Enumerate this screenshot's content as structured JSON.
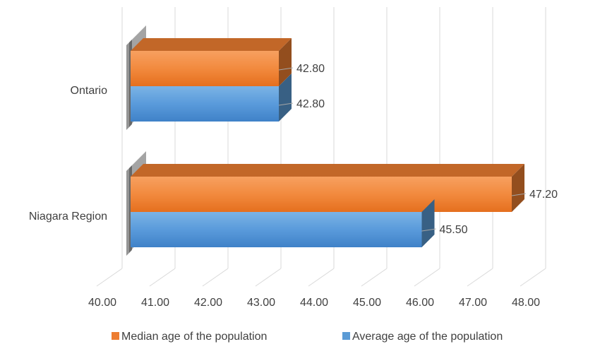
{
  "chart_data": {
    "type": "bar",
    "orientation": "horizontal",
    "style": "3d",
    "categories": [
      "Ontario",
      "Niagara Region"
    ],
    "series": [
      {
        "name": "Median age of the population",
        "color": "#ED7D31",
        "values": [
          42.8,
          47.2
        ],
        "labels": [
          "42.80",
          "47.20"
        ]
      },
      {
        "name": "Average age of the population",
        "color": "#5B9BD5",
        "values": [
          42.8,
          45.5
        ],
        "labels": [
          "42.80",
          "45.50"
        ]
      }
    ],
    "xlim": [
      40,
      48
    ],
    "xticks": [
      "40.00",
      "41.00",
      "42.00",
      "43.00",
      "44.00",
      "45.00",
      "46.00",
      "47.00",
      "48.00"
    ],
    "grid": true,
    "legend": "bottom"
  }
}
